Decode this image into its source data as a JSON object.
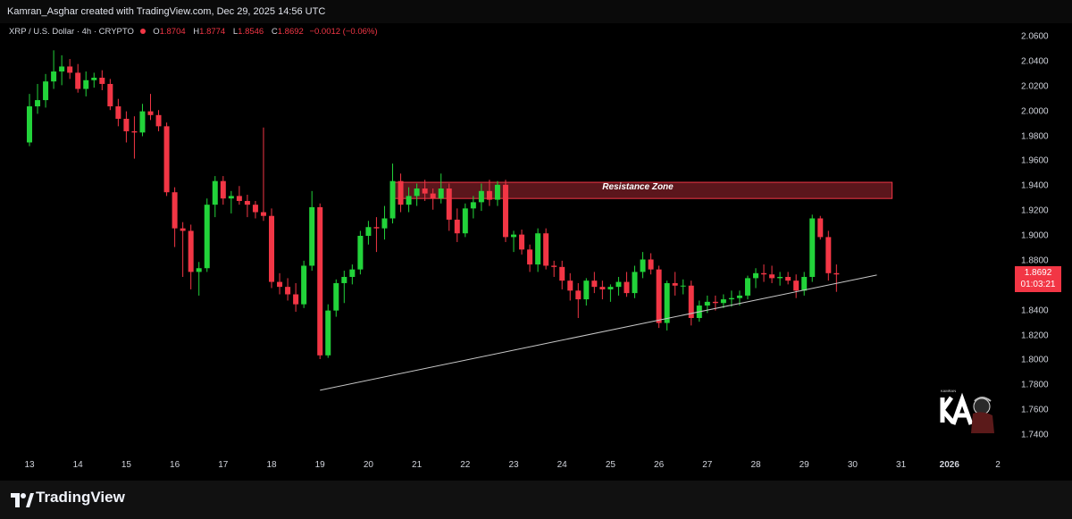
{
  "header": {
    "attribution": "Kamran_Asghar created with TradingView.com, Dec 29, 2025 14:56 UTC"
  },
  "legend": {
    "symbol": "XRP / U.S. Dollar · 4h · CRYPTO",
    "o_label": "O",
    "o_value": "1.8704",
    "h_label": "H",
    "h_value": "1.8774",
    "l_label": "L",
    "l_value": "1.8546",
    "c_label": "C",
    "c_value": "1.8692",
    "change": "−0.0012 (−0.06%)"
  },
  "price_tag": {
    "price": "1.8692",
    "countdown": "01:03:21"
  },
  "annotation": {
    "resistance_label": "Resistance Zone"
  },
  "footer": {
    "brand": "TradingView"
  },
  "colors": {
    "up": "#22d33a",
    "down": "#f23645",
    "zone_fill": "#7a1e26",
    "zone_border": "#f23645",
    "trendline": "#c8c8c8",
    "background": "#000000"
  },
  "chart_data": {
    "type": "candlestick",
    "title": "",
    "xlabel": "",
    "ylabel": "",
    "ylim": [
      1.725,
      2.07
    ],
    "y_ticks": [
      "2.0600",
      "2.0400",
      "2.0200",
      "2.0000",
      "1.9800",
      "1.9600",
      "1.9400",
      "1.9200",
      "1.9000",
      "1.8800",
      "1.8600",
      "1.8400",
      "1.8200",
      "1.8000",
      "1.7800",
      "1.7600",
      "1.7400"
    ],
    "x_ticks": [
      "13",
      "14",
      "15",
      "16",
      "17",
      "18",
      "19",
      "20",
      "21",
      "22",
      "23",
      "24",
      "25",
      "26",
      "27",
      "28",
      "29",
      "30",
      "31",
      "2026",
      "2"
    ],
    "candles": [
      [
        "Dec 13 00:00",
        1.975,
        2.014,
        1.972,
        2.004
      ],
      [
        "Dec 13 04:00",
        2.004,
        2.022,
        1.998,
        2.009
      ],
      [
        "Dec 13 08:00",
        2.009,
        2.03,
        2.003,
        2.024
      ],
      [
        "Dec 13 12:00",
        2.024,
        2.049,
        2.018,
        2.032
      ],
      [
        "Dec 13 16:00",
        2.032,
        2.045,
        2.021,
        2.036
      ],
      [
        "Dec 13 20:00",
        2.036,
        2.042,
        2.026,
        2.031
      ],
      [
        "Dec 14 00:00",
        2.031,
        2.038,
        2.015,
        2.018
      ],
      [
        "Dec 14 04:00",
        2.018,
        2.032,
        2.012,
        2.025
      ],
      [
        "Dec 14 08:00",
        2.025,
        2.031,
        2.019,
        2.027
      ],
      [
        "Dec 14 12:00",
        2.027,
        2.033,
        2.017,
        2.022
      ],
      [
        "Dec 14 16:00",
        2.022,
        2.026,
        2.001,
        2.004
      ],
      [
        "Dec 14 20:00",
        2.004,
        2.01,
        1.988,
        1.994
      ],
      [
        "Dec 15 00:00",
        1.994,
        2.0,
        1.975,
        1.984
      ],
      [
        "Dec 15 04:00",
        1.984,
        1.996,
        1.962,
        1.983
      ],
      [
        "Dec 15 08:00",
        1.983,
        2.006,
        1.98,
        2.0
      ],
      [
        "Dec 15 12:00",
        2.0,
        2.014,
        1.993,
        1.997
      ],
      [
        "Dec 15 16:00",
        1.997,
        2.001,
        1.984,
        1.988
      ],
      [
        "Dec 15 20:00",
        1.988,
        1.991,
        1.932,
        1.935
      ],
      [
        "Dec 16 00:00",
        1.935,
        1.939,
        1.891,
        1.906
      ],
      [
        "Dec 16 04:00",
        1.906,
        1.911,
        1.867,
        1.904
      ],
      [
        "Dec 16 08:00",
        1.904,
        1.909,
        1.857,
        1.871
      ],
      [
        "Dec 16 12:00",
        1.871,
        1.879,
        1.852,
        1.874
      ],
      [
        "Dec 16 16:00",
        1.874,
        1.93,
        1.871,
        1.925
      ],
      [
        "Dec 16 20:00",
        1.925,
        1.948,
        1.915,
        1.944
      ],
      [
        "Dec 17 00:00",
        1.944,
        1.948,
        1.925,
        1.93
      ],
      [
        "Dec 17 04:00",
        1.93,
        1.936,
        1.918,
        1.932
      ],
      [
        "Dec 17 08:00",
        1.932,
        1.94,
        1.925,
        1.928
      ],
      [
        "Dec 17 12:00",
        1.928,
        1.933,
        1.915,
        1.925
      ],
      [
        "Dec 17 16:00",
        1.925,
        1.928,
        1.914,
        1.919
      ],
      [
        "Dec 17 20:00",
        1.919,
        1.987,
        1.912,
        1.916
      ],
      [
        "Dec 18 00:00",
        1.916,
        1.922,
        1.858,
        1.863
      ],
      [
        "Dec 18 04:00",
        1.863,
        1.87,
        1.853,
        1.859
      ],
      [
        "Dec 18 08:00",
        1.859,
        1.866,
        1.848,
        1.853
      ],
      [
        "Dec 18 12:00",
        1.853,
        1.862,
        1.839,
        1.845
      ],
      [
        "Dec 18 16:00",
        1.845,
        1.88,
        1.842,
        1.876
      ],
      [
        "Dec 18 20:00",
        1.876,
        1.936,
        1.872,
        1.923
      ],
      [
        "Dec 19 00:00",
        1.923,
        1.926,
        1.801,
        1.804
      ],
      [
        "Dec 19 04:00",
        1.804,
        1.845,
        1.802,
        1.84
      ],
      [
        "Dec 19 08:00",
        1.84,
        1.865,
        1.835,
        1.862
      ],
      [
        "Dec 19 12:00",
        1.862,
        1.872,
        1.846,
        1.867
      ],
      [
        "Dec 19 16:00",
        1.867,
        1.877,
        1.861,
        1.873
      ],
      [
        "Dec 19 20:00",
        1.873,
        1.904,
        1.869,
        1.9
      ],
      [
        "Dec 20 00:00",
        1.9,
        1.912,
        1.893,
        1.907
      ],
      [
        "Dec 20 04:00",
        1.907,
        1.915,
        1.887,
        1.906
      ],
      [
        "Dec 20 08:00",
        1.906,
        1.924,
        1.897,
        1.914
      ],
      [
        "Dec 20 12:00",
        1.914,
        1.958,
        1.91,
        1.944
      ],
      [
        "Dec 20 16:00",
        1.944,
        1.95,
        1.919,
        1.925
      ],
      [
        "Dec 20 20:00",
        1.925,
        1.939,
        1.919,
        1.932
      ],
      [
        "Dec 21 00:00",
        1.932,
        1.942,
        1.924,
        1.938
      ],
      [
        "Dec 21 04:00",
        1.938,
        1.945,
        1.928,
        1.934
      ],
      [
        "Dec 21 08:00",
        1.934,
        1.938,
        1.921,
        1.93
      ],
      [
        "Dec 21 12:00",
        1.93,
        1.95,
        1.926,
        1.938
      ],
      [
        "Dec 21 16:00",
        1.938,
        1.942,
        1.904,
        1.913
      ],
      [
        "Dec 21 20:00",
        1.913,
        1.922,
        1.895,
        1.902
      ],
      [
        "Dec 22 00:00",
        1.902,
        1.926,
        1.899,
        1.922
      ],
      [
        "Dec 22 04:00",
        1.922,
        1.932,
        1.914,
        1.927
      ],
      [
        "Dec 22 08:00",
        1.927,
        1.942,
        1.92,
        1.936
      ],
      [
        "Dec 22 12:00",
        1.936,
        1.945,
        1.924,
        1.929
      ],
      [
        "Dec 22 16:00",
        1.929,
        1.944,
        1.924,
        1.941
      ],
      [
        "Dec 22 20:00",
        1.941,
        1.945,
        1.895,
        1.899
      ],
      [
        "Dec 23 00:00",
        1.899,
        1.904,
        1.887,
        1.901
      ],
      [
        "Dec 23 04:00",
        1.901,
        1.905,
        1.885,
        1.889
      ],
      [
        "Dec 23 08:00",
        1.889,
        1.893,
        1.871,
        1.877
      ],
      [
        "Dec 23 12:00",
        1.877,
        1.906,
        1.871,
        1.902
      ],
      [
        "Dec 23 16:00",
        1.902,
        1.906,
        1.873,
        1.876
      ],
      [
        "Dec 23 20:00",
        1.876,
        1.88,
        1.867,
        1.875
      ],
      [
        "Dec 24 00:00",
        1.875,
        1.88,
        1.857,
        1.864
      ],
      [
        "Dec 24 04:00",
        1.864,
        1.87,
        1.848,
        1.856
      ],
      [
        "Dec 24 08:00",
        1.856,
        1.862,
        1.834,
        1.849
      ],
      [
        "Dec 24 12:00",
        1.849,
        1.866,
        1.844,
        1.864
      ],
      [
        "Dec 24 16:00",
        1.864,
        1.871,
        1.854,
        1.859
      ],
      [
        "Dec 24 20:00",
        1.859,
        1.864,
        1.849,
        1.857
      ],
      [
        "Dec 25 00:00",
        1.857,
        1.861,
        1.847,
        1.859
      ],
      [
        "Dec 25 04:00",
        1.859,
        1.867,
        1.852,
        1.863
      ],
      [
        "Dec 25 08:00",
        1.863,
        1.871,
        1.851,
        1.854
      ],
      [
        "Dec 25 12:00",
        1.854,
        1.876,
        1.85,
        1.871
      ],
      [
        "Dec 25 16:00",
        1.871,
        1.887,
        1.866,
        1.881
      ],
      [
        "Dec 25 20:00",
        1.881,
        1.886,
        1.869,
        1.873
      ],
      [
        "Dec 26 00:00",
        1.873,
        1.876,
        1.826,
        1.83
      ],
      [
        "Dec 26 04:00",
        1.83,
        1.864,
        1.824,
        1.862
      ],
      [
        "Dec 26 08:00",
        1.862,
        1.871,
        1.852,
        1.86
      ],
      [
        "Dec 26 12:00",
        1.86,
        1.865,
        1.853,
        1.86
      ],
      [
        "Dec 26 16:00",
        1.86,
        1.864,
        1.828,
        1.834
      ],
      [
        "Dec 26 20:00",
        1.834,
        1.848,
        1.831,
        1.844
      ],
      [
        "Dec 27 00:00",
        1.844,
        1.852,
        1.838,
        1.847
      ],
      [
        "Dec 27 04:00",
        1.847,
        1.852,
        1.84,
        1.846
      ],
      [
        "Dec 27 08:00",
        1.846,
        1.853,
        1.842,
        1.849
      ],
      [
        "Dec 27 12:00",
        1.849,
        1.856,
        1.843,
        1.85
      ],
      [
        "Dec 27 16:00",
        1.85,
        1.856,
        1.844,
        1.852
      ],
      [
        "Dec 27 20:00",
        1.852,
        1.868,
        1.849,
        1.866
      ],
      [
        "Dec 28 00:00",
        1.866,
        1.874,
        1.858,
        1.87
      ],
      [
        "Dec 28 04:00",
        1.87,
        1.877,
        1.863,
        1.869
      ],
      [
        "Dec 28 08:00",
        1.869,
        1.876,
        1.862,
        1.866
      ],
      [
        "Dec 28 12:00",
        1.866,
        1.871,
        1.86,
        1.867
      ],
      [
        "Dec 28 16:00",
        1.867,
        1.871,
        1.861,
        1.864
      ],
      [
        "Dec 28 20:00",
        1.864,
        1.869,
        1.85,
        1.856
      ],
      [
        "Dec 29 00:00",
        1.856,
        1.871,
        1.852,
        1.867
      ],
      [
        "Dec 29 04:00",
        1.867,
        1.917,
        1.863,
        1.914
      ],
      [
        "Dec 29 08:00",
        1.914,
        1.916,
        1.897,
        1.899
      ],
      [
        "Dec 29 12:00",
        1.899,
        1.904,
        1.864,
        1.87
      ],
      [
        "Dec 29 16:00",
        1.87,
        1.877,
        1.855,
        1.869
      ]
    ],
    "resistance_zone": {
      "top": 1.943,
      "bottom": 1.93,
      "from": "Dec 20 12:00",
      "to": "Dec 31 00:00"
    },
    "trendline": {
      "from": [
        "Dec 19 00:00",
        1.776
      ],
      "to": [
        "Dec 30 12:00",
        1.8685
      ]
    }
  }
}
